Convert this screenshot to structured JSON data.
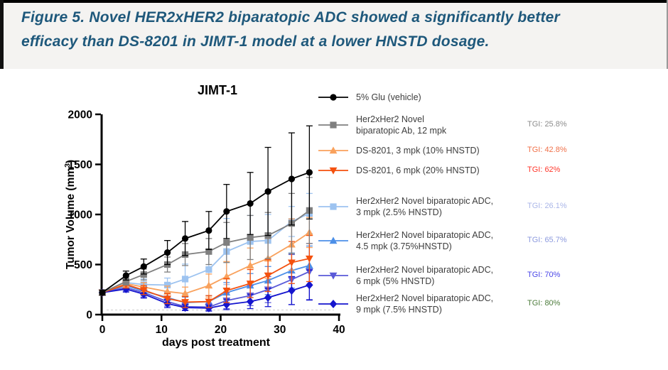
{
  "figure_title": {
    "line1": "Figure 5. Novel HER2xHER2 biparatopic  ADC showed a significantly better",
    "line2": "efficacy than DS-8201 in JIMT-1 model at a lower HNSTD dosage."
  },
  "chart_data": {
    "type": "line",
    "title": "JIMT-1",
    "xlabel": "days post treatment",
    "ylabel": "Tumor Volume (mm³)",
    "ylabel_base": "Tumor Volume (mm",
    "ylabel_sup": "3",
    "ylabel_end": ")",
    "xlim": [
      0,
      40
    ],
    "ylim": [
      0,
      2000
    ],
    "xticks": [
      0,
      10,
      20,
      30,
      40
    ],
    "yticks": [
      0,
      500,
      1000,
      1500,
      2000
    ],
    "grid": false,
    "legend_position": "right",
    "x": [
      0,
      4,
      7,
      11,
      14,
      18,
      21,
      25,
      28,
      32,
      35
    ],
    "series": [
      {
        "name": "5% Glu (vehicle)",
        "label_lines": [
          "5% Glu (vehicle)"
        ],
        "marker": "circle",
        "color": "#000000",
        "values": [
          220,
          390,
          480,
          620,
          760,
          840,
          1030,
          1110,
          1230,
          1355,
          1420
        ],
        "err": [
          25,
          45,
          75,
          120,
          170,
          190,
          270,
          310,
          440,
          460,
          465
        ],
        "tgi": null,
        "tgi_color": null
      },
      {
        "name": "Her2xHer2 Novel biparatopic Ab, 12 mpk",
        "label_lines": [
          "Her2xHer2 Novel",
          "biparatopic Ab, 12 mpk"
        ],
        "marker": "square",
        "color": "#7f7f7f",
        "values": [
          220,
          330,
          400,
          500,
          600,
          630,
          720,
          770,
          790,
          910,
          1040
        ],
        "err": [
          25,
          35,
          55,
          75,
          110,
          130,
          200,
          220,
          230,
          300,
          330
        ],
        "tgi": "TGI: 25.8%",
        "tgi_color": "#8c8c8c"
      },
      {
        "name": "DS-8201, 3 mpk (10% HNSTD)",
        "label_lines": [
          "DS-8201, 3 mpk (10% HNSTD)"
        ],
        "marker": "triangle-up",
        "color": "#f9a15c",
        "values": [
          220,
          310,
          275,
          230,
          210,
          290,
          380,
          490,
          560,
          700,
          820
        ],
        "err": [
          25,
          35,
          45,
          55,
          65,
          115,
          150,
          175,
          200,
          255,
          150
        ],
        "tgi": "TGI: 42.8%",
        "tgi_color": "#f0714a"
      },
      {
        "name": "DS-8201, 6 mpk (20% HNSTD)",
        "label_lines": [
          "DS-8201, 6 mpk (20% HNSTD)"
        ],
        "marker": "triangle-down",
        "color": "#f4510e",
        "values": [
          220,
          300,
          245,
          160,
          125,
          130,
          240,
          310,
          390,
          520,
          560
        ],
        "err": [
          25,
          35,
          45,
          50,
          55,
          60,
          120,
          140,
          160,
          210,
          230
        ],
        "tgi": "TGI: 62%",
        "tgi_color": "#ff372b"
      },
      {
        "name": "Her2xHer2 Novel biparatopic ADC, 3 mpk (2.5% HNSTD)",
        "label_lines": [
          "Her2xHer2 Novel biparatopic ADC,",
          "3 mpk (2.5% HNSTD)"
        ],
        "marker": "square",
        "color": "#9dc3f0",
        "values": [
          220,
          320,
          300,
          295,
          355,
          450,
          630,
          730,
          740,
          930,
          1010
        ],
        "err": [
          25,
          35,
          55,
          70,
          150,
          180,
          330,
          260,
          260,
          150,
          200
        ],
        "tgi": "TGI: 26.1%",
        "tgi_color": "#aab6e8"
      },
      {
        "name": "Her2xHer2 Novel biparatopic ADC, 4.5 mpk (3.75%HNSTD)",
        "label_lines": [
          "Her2xHer2 Novel biparatopic ADC,",
          "4.5 mpk (3.75%HNSTD)"
        ],
        "marker": "triangle-up",
        "color": "#4c8fe8",
        "values": [
          220,
          290,
          235,
          170,
          120,
          130,
          220,
          290,
          340,
          440,
          490
        ],
        "err": [
          25,
          35,
          45,
          50,
          55,
          60,
          100,
          120,
          140,
          175,
          195
        ],
        "tgi": "TGI: 65.7%",
        "tgi_color": "#8c9ade"
      },
      {
        "name": "Her2xHer2 Novel biparatopic ADC, 6 mpk (5% HNSTD)",
        "label_lines": [
          "Her2xHer2 Novel biparatopic ADC,",
          "6 mpk (5% HNSTD)"
        ],
        "marker": "triangle-down",
        "color": "#5a5ad8",
        "values": [
          220,
          270,
          220,
          130,
          80,
          75,
          140,
          190,
          250,
          350,
          430
        ],
        "err": [
          25,
          35,
          45,
          45,
          35,
          35,
          80,
          100,
          130,
          250,
          280
        ],
        "tgi": "TGI: 70%",
        "tgi_color": "#4a46e8"
      },
      {
        "name": "Her2xHer2 Novel biparatopic ADC, 9 mpk (7.5% HNSTD)",
        "label_lines": [
          "Her2xHer2 Novel biparatopic ADC,",
          "9 mpk (7.5% HNSTD)"
        ],
        "marker": "diamond",
        "color": "#1515ce",
        "values": [
          220,
          255,
          205,
          110,
          70,
          65,
          100,
          130,
          170,
          240,
          295
        ],
        "err": [
          25,
          30,
          40,
          40,
          30,
          30,
          50,
          70,
          90,
          140,
          150
        ],
        "tgi": "TGI: 80%",
        "tgi_color": "#4d7c3c"
      }
    ]
  }
}
